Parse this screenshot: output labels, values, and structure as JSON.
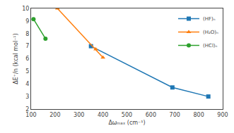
{
  "chart_data": {
    "type": "line",
    "xlabel": "Δωₘₐₓ (cm⁻¹)",
    "ylabel": "ΔE⁺/n (kcal mol⁻¹)",
    "series": [
      {
        "name": "(HF)ₙ",
        "x": [
          350,
          690,
          840
        ],
        "values": [
          7.0,
          3.72,
          3.0
        ],
        "marker": "square",
        "line_style": "solid"
      },
      {
        "name": "(H₂O)ₙ",
        "x": [
          210,
          370,
          400
        ],
        "values": [
          10.0,
          6.75,
          6.1
        ],
        "marker": "triangle-up",
        "line_style": "solid"
      },
      {
        "name": "(HCl)ₙ",
        "x": [
          110,
          160
        ],
        "values": [
          9.15,
          7.6
        ],
        "marker": "circle",
        "line_style": "solid"
      }
    ],
    "xlim": [
      100,
      900
    ],
    "ylim": [
      2,
      10
    ],
    "xticks": [
      100,
      200,
      300,
      400,
      500,
      600,
      700,
      800,
      900
    ],
    "yticks": [
      2,
      3,
      4,
      5,
      6,
      7,
      8,
      9,
      10
    ],
    "grid": false,
    "legend": "upper right"
  }
}
